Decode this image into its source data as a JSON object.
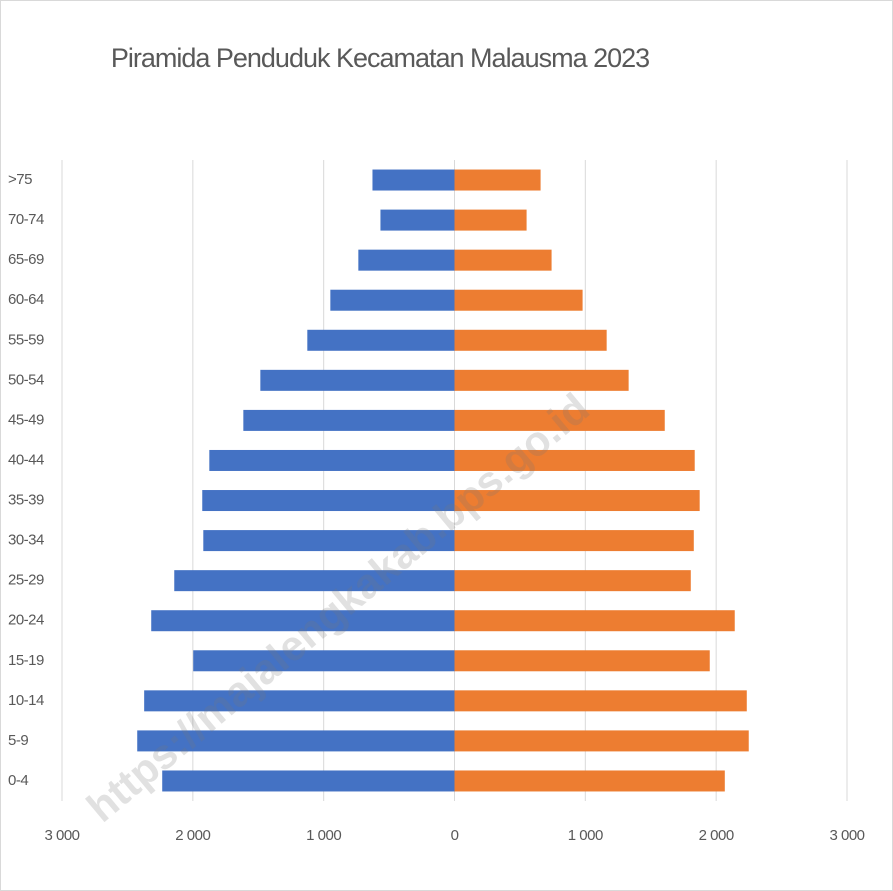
{
  "chart_data": {
    "type": "pyramid",
    "title": "Piramida Penduduk Kecamatan Malausma 2023",
    "watermark": "https://majalengkakab.bps.go.id",
    "categories": [
      "0-4",
      "5-9",
      "10-14",
      "15-19",
      "20-24",
      "25-29",
      "30-34",
      "35-39",
      "40-44",
      "45-49",
      "50-54",
      "55-59",
      "60-64",
      "65-69",
      "70-74",
      ">75"
    ],
    "series": [
      {
        "color": "#4472c4",
        "values": [
          -2234,
          -2425,
          -2372,
          -1997,
          -2318,
          -2142,
          -1920,
          -1928,
          -1874,
          -1614,
          -1484,
          -1125,
          -949,
          -735,
          -566,
          -627
        ]
      },
      {
        "color": "#ed7d31",
        "values": [
          2066,
          2249,
          2234,
          1951,
          2142,
          1806,
          1829,
          1874,
          1836,
          1607,
          1331,
          1163,
          979,
          742,
          551,
          658
        ]
      }
    ],
    "xlim": [
      -3000,
      3000
    ],
    "xticks": [
      {
        "value": -3000,
        "label": "3 000"
      },
      {
        "value": -2000,
        "label": "2 000"
      },
      {
        "value": -1000,
        "label": "1 000"
      },
      0,
      {
        "value": 1000,
        "label": "1 000"
      },
      {
        "value": 2000,
        "label": "2 000"
      },
      {
        "value": 3000,
        "label": "3 000"
      }
    ],
    "grid": true
  }
}
